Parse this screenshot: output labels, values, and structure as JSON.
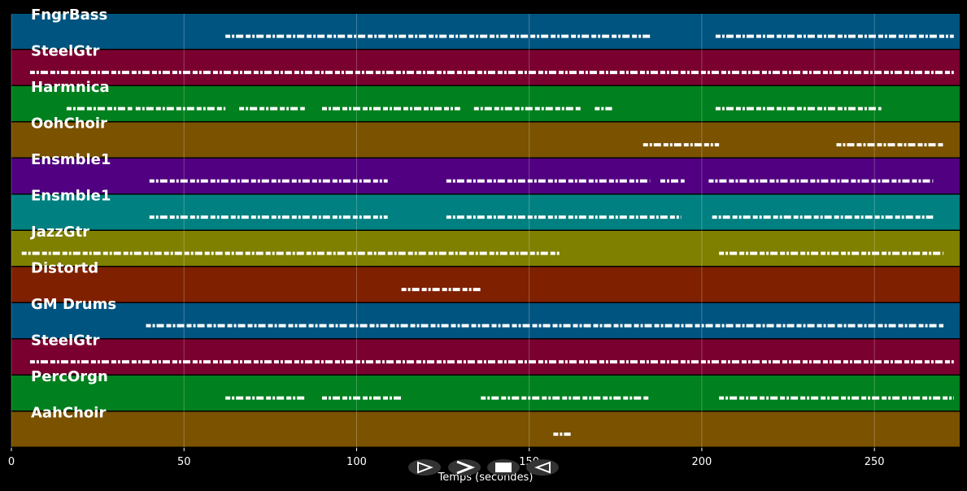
{
  "chart_data": {
    "type": "timeline",
    "x_label": "Temps (secondes)",
    "xlim": [
      0,
      274.7
    ],
    "xticks": [
      0,
      50,
      100,
      150,
      200,
      250
    ],
    "grid": true,
    "series": [
      {
        "name": "FngrBass",
        "color": "#005480",
        "segments": [
          [
            62,
            185
          ],
          [
            204,
            273
          ]
        ]
      },
      {
        "name": "SteelGtr",
        "color": "#7a0030",
        "segments": [
          [
            5.4,
            273
          ]
        ]
      },
      {
        "name": "Harmnica",
        "color": "#00801e",
        "segments": [
          [
            16,
            35
          ],
          [
            36,
            62
          ],
          [
            66,
            85
          ],
          [
            90,
            130
          ],
          [
            134,
            165
          ],
          [
            169,
            174
          ],
          [
            204,
            252
          ]
        ]
      },
      {
        "name": "OohChoir",
        "color": "#7a5200",
        "segments": [
          [
            183,
            205
          ],
          [
            239,
            270
          ]
        ]
      },
      {
        "name": "Ensmble1",
        "color": "#500080",
        "segments": [
          [
            40,
            109
          ],
          [
            126,
            185
          ],
          [
            188,
            195
          ],
          [
            202,
            267
          ]
        ]
      },
      {
        "name": "Ensmble1",
        "color": "#008080",
        "segments": [
          [
            40,
            109
          ],
          [
            126,
            194
          ],
          [
            203,
            267
          ]
        ]
      },
      {
        "name": "JazzGtr",
        "color": "#7f7f00",
        "segments": [
          [
            3,
            159
          ],
          [
            205,
            270
          ]
        ]
      },
      {
        "name": "Distortd",
        "color": "#7f2000",
        "segments": [
          [
            113,
            136
          ]
        ]
      },
      {
        "name": "GM Drums",
        "color": "#005480",
        "segments": [
          [
            39,
            270
          ]
        ]
      },
      {
        "name": "SteelGtr",
        "color": "#7a0030",
        "segments": [
          [
            5.4,
            273
          ]
        ]
      },
      {
        "name": "PercOrgn",
        "color": "#00801e",
        "segments": [
          [
            62,
            85
          ],
          [
            90,
            113
          ],
          [
            136,
            185
          ],
          [
            205,
            273
          ]
        ]
      },
      {
        "name": "AahChoir",
        "color": "#7a5200",
        "segments": [
          [
            157,
            162
          ]
        ]
      }
    ]
  }
}
